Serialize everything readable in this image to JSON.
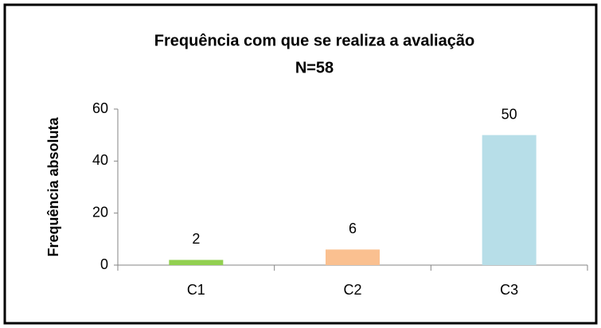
{
  "chart_data": {
    "type": "bar",
    "title": "Frequência com que se realiza a avaliação",
    "subtitle": "N=58",
    "y_label": "Frequência absoluta",
    "categories": [
      "C1",
      "C2",
      "C3"
    ],
    "values": [
      2,
      6,
      50
    ],
    "colors": [
      "#92d050",
      "#fac090",
      "#b7dee8"
    ],
    "ylim": [
      0,
      60
    ],
    "yticks": [
      0,
      20,
      40,
      60
    ],
    "grid": false
  }
}
